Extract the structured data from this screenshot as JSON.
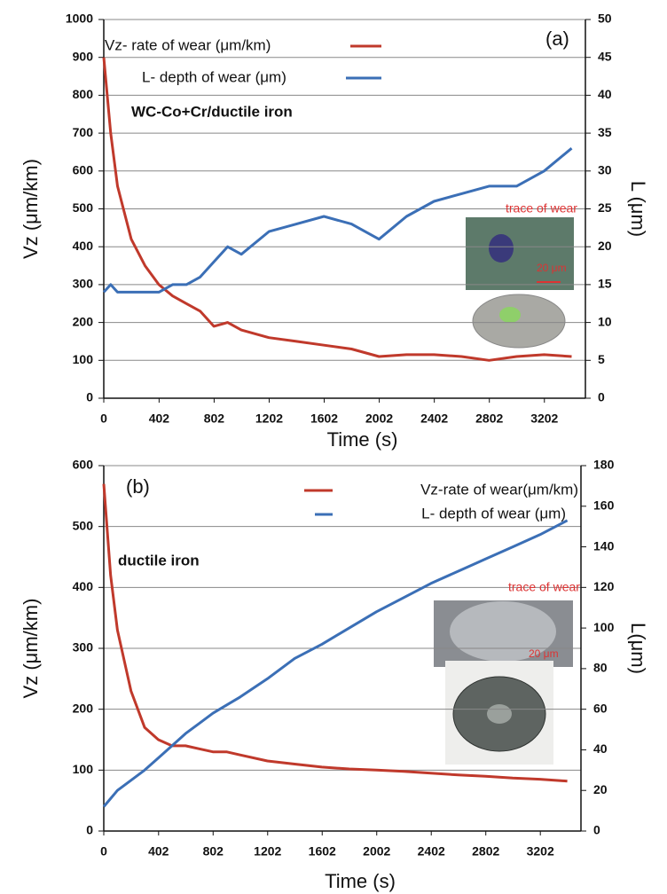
{
  "chart_data": [
    {
      "type": "line",
      "x": [
        0,
        50,
        100,
        200,
        300,
        400,
        500,
        600,
        700,
        800,
        900,
        1000,
        1200,
        1400,
        1600,
        1800,
        2000,
        2200,
        2400,
        2600,
        2800,
        3000,
        3200,
        3400
      ],
      "series": [
        {
          "name": "Vz- rate of wear (μm/km)",
          "color": "#c0392b",
          "axis": "y",
          "values": [
            900,
            700,
            560,
            420,
            350,
            300,
            270,
            250,
            230,
            190,
            200,
            180,
            160,
            150,
            140,
            130,
            110,
            115,
            115,
            110,
            100,
            110,
            115,
            110
          ]
        },
        {
          "name": "L- depth of wear (μm)",
          "color": "#3b6fb6",
          "axis": "y2",
          "values": [
            14,
            15,
            14,
            14,
            14,
            14,
            15,
            15,
            16,
            18,
            20,
            19,
            22,
            23,
            24,
            23,
            21,
            24,
            26,
            27,
            28,
            28,
            30,
            33
          ]
        }
      ],
      "xlim": [
        0,
        3500
      ],
      "xticks": [
        0,
        402,
        802,
        1202,
        1602,
        2002,
        2402,
        2802,
        3202
      ],
      "ylim": [
        0,
        1000
      ],
      "yticks": [
        0,
        100,
        200,
        300,
        400,
        500,
        600,
        700,
        800,
        900,
        1000
      ],
      "y2lim": [
        0,
        50
      ],
      "y2ticks": [
        0,
        5,
        10,
        15,
        20,
        25,
        30,
        35,
        40,
        45,
        50
      ],
      "xlabel": "Time (s)",
      "ylabel": "Vz (μm/km)",
      "y2label": "L (μm)",
      "grid": true,
      "annotations": [
        "(a)",
        "WC-Co+Cr/ductile iron",
        "trace of wear",
        "20 μm"
      ]
    },
    {
      "type": "line",
      "x": [
        0,
        50,
        100,
        200,
        300,
        400,
        500,
        600,
        700,
        800,
        900,
        1000,
        1200,
        1400,
        1600,
        1800,
        2000,
        2200,
        2400,
        2600,
        2800,
        3000,
        3200,
        3400
      ],
      "series": [
        {
          "name": "Vz-rate of wear(μm/km)",
          "color": "#c0392b",
          "axis": "y",
          "values": [
            570,
            420,
            330,
            230,
            170,
            150,
            140,
            140,
            135,
            130,
            130,
            125,
            115,
            110,
            105,
            102,
            100,
            98,
            95,
            92,
            90,
            87,
            85,
            82
          ]
        },
        {
          "name": "L- depth of wear (μm)",
          "color": "#3b6fb6",
          "axis": "y2",
          "values": [
            12,
            16,
            20,
            25,
            30,
            36,
            42,
            48,
            53,
            58,
            62,
            66,
            75,
            85,
            92,
            100,
            108,
            115,
            122,
            128,
            134,
            140,
            146,
            153
          ]
        }
      ],
      "xlim": [
        0,
        3500
      ],
      "xticks": [
        0,
        402,
        802,
        1202,
        1602,
        2002,
        2402,
        2802,
        3202
      ],
      "ylim": [
        0,
        600
      ],
      "yticks": [
        0,
        100,
        200,
        300,
        400,
        500,
        600
      ],
      "y2lim": [
        0,
        180
      ],
      "y2ticks": [
        0,
        20,
        40,
        60,
        80,
        100,
        120,
        140,
        160,
        180
      ],
      "xlabel": "Time (s)",
      "ylabel": "Vz (μm/km)",
      "y2label": "L(μm)",
      "grid": true,
      "annotations": [
        "(b)",
        "ductile iron",
        "trace of wear",
        "20 μm"
      ]
    }
  ]
}
